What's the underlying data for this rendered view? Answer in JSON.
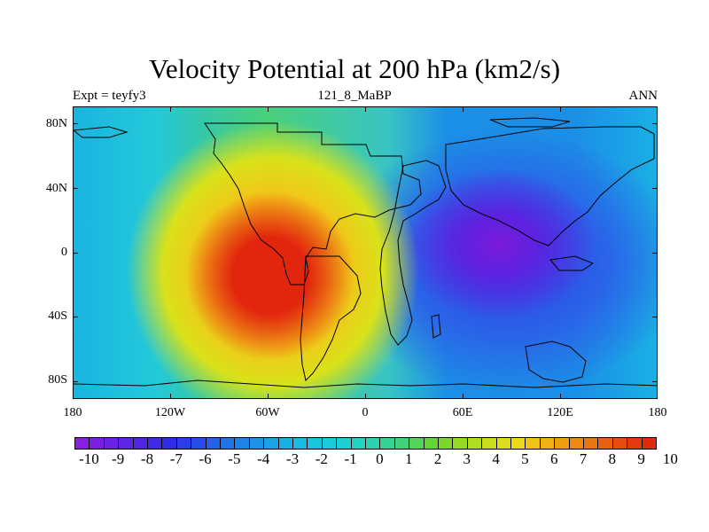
{
  "figure": {
    "title": "Velocity Potential at 200 hPa (km2/s)",
    "subtitle_left": "Expt = teyfy3",
    "subtitle_center": "121_8_MaBP",
    "subtitle_right": "ANN"
  },
  "map": {
    "projection": "cylindrical equidistant",
    "lat_labels": [
      "80N",
      "40N",
      "0",
      "40S",
      "80S"
    ],
    "lon_labels": [
      "180",
      "120W",
      "60W",
      "0",
      "60E",
      "120E",
      "180"
    ],
    "fields": {
      "max_region": "Americas / eastern Pacific, near 20N 80W, values about 9-10",
      "min_region": "Indian Ocean / Asia, near 0 100E, values about -10"
    }
  },
  "chart_data": {
    "type": "heatmap",
    "title": "Velocity Potential at 200 hPa (km2/s)",
    "variable": "Velocity potential",
    "level": "200 hPa",
    "units": "km2/s",
    "x_range": [
      -180,
      180
    ],
    "y_range": [
      -90,
      90
    ],
    "colorbar_levels": [
      -10,
      -9.5,
      -9,
      -8.5,
      -8,
      -7.5,
      -7,
      -6.5,
      -6,
      -5.5,
      -5,
      -4.5,
      -4,
      -3.5,
      -3,
      -2.5,
      -2,
      -1.5,
      -1,
      -0.5,
      0,
      0.5,
      1,
      1.5,
      2,
      2.5,
      3,
      3.5,
      4,
      4.5,
      5,
      5.5,
      6,
      6.5,
      7,
      7.5,
      8,
      8.5,
      9,
      9.5,
      10
    ],
    "colorbar_labels": [
      "-10",
      "-9",
      "-8",
      "-7",
      "-6",
      "-5",
      "-4",
      "-3",
      "-2",
      "-1",
      "0",
      "1",
      "2",
      "3",
      "4",
      "5",
      "6",
      "7",
      "8",
      "9",
      "10"
    ],
    "colorbar_colors": [
      "#8a1ee0",
      "#7b1fe1",
      "#6c22e2",
      "#5e24e3",
      "#5026e4",
      "#3f29e4",
      "#2f2ce5",
      "#2a3de6",
      "#284ce7",
      "#2560e8",
      "#2272e8",
      "#1f84e8",
      "#1c93e6",
      "#1aa2e4",
      "#19afe2",
      "#19bbe0",
      "#1ac4dd",
      "#1ccbda",
      "#1ed0d2",
      "#23d3c2",
      "#2bd3ae",
      "#36d396",
      "#42d27c",
      "#52d45a",
      "#63d636",
      "#7ad82c",
      "#96da26",
      "#b0dc22",
      "#c8dd1f",
      "#dcdd1d",
      "#ecd91b",
      "#f2c419",
      "#f0b116",
      "#ee9e13",
      "#ec8a11",
      "#e9760f",
      "#e6620e",
      "#e44d0d",
      "#e23a0d",
      "#df2a0c"
    ]
  }
}
